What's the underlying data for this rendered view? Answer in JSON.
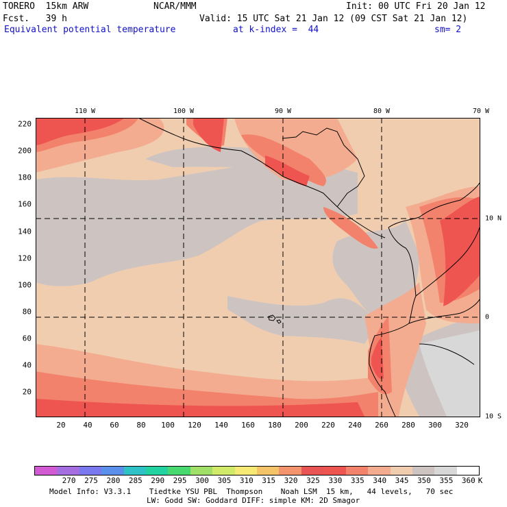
{
  "header": {
    "model": "TORERO  15km ARW",
    "org": "NCAR/MMM",
    "init": "Init: 00 UTC Fri 20 Jan 12",
    "fcst": "Fcst.   39 h",
    "valid": "Valid: 15 UTC Sat 21 Jan 12 (09 CST Sat 21 Jan 12)",
    "field": "Equivalent potential temperature",
    "level": "at k-index =  44",
    "smooth": "sm= 2"
  },
  "map": {
    "lon_labels": [
      "110 W",
      "100 W",
      "90 W",
      "80 W",
      "70 W"
    ],
    "lat_labels": [
      "10 N",
      "0",
      "10 S"
    ],
    "x_ticks": [
      "20",
      "40",
      "60",
      "80",
      "100",
      "120",
      "140",
      "160",
      "180",
      "200",
      "220",
      "240",
      "260",
      "280",
      "300",
      "320"
    ],
    "y_ticks": [
      "220",
      "200",
      "180",
      "160",
      "140",
      "120",
      "100",
      "80",
      "60",
      "40",
      "20"
    ],
    "colors": {
      "c330": "#ee5450",
      "c335": "#f3826c",
      "c340": "#f3ac90",
      "c345": "#f1cdb0",
      "c350": "#cdc4c2",
      "c355": "#d8d8d8",
      "c360": "#ffffff"
    }
  },
  "colorbar": {
    "values": [
      "270",
      "275",
      "280",
      "285",
      "290",
      "295",
      "300",
      "305",
      "310",
      "315",
      "320",
      "325",
      "330",
      "335",
      "340",
      "345",
      "350",
      "355",
      "360"
    ],
    "unit": "K",
    "colors": [
      "#d25ad2",
      "#a46ee0",
      "#7a78ee",
      "#5a90ec",
      "#2ec2c6",
      "#22d2a0",
      "#48d870",
      "#a0e068",
      "#d2ea6a",
      "#f6ea74",
      "#f6c468",
      "#f4946e",
      "#e85454",
      "#ee5450",
      "#f3826c",
      "#f3ac90",
      "#f1cdb0",
      "#cdc4c2",
      "#d8d8d8",
      "#ffffff"
    ]
  },
  "footer": {
    "line1": "Model Info: V3.3.1    Tiedtke YSU PBL  Thompson    Noah LSM  15 km,   44 levels,   70 sec",
    "line2": "LW: Godd SW: Goddard DIFF: simple KM: 2D Smagor"
  }
}
